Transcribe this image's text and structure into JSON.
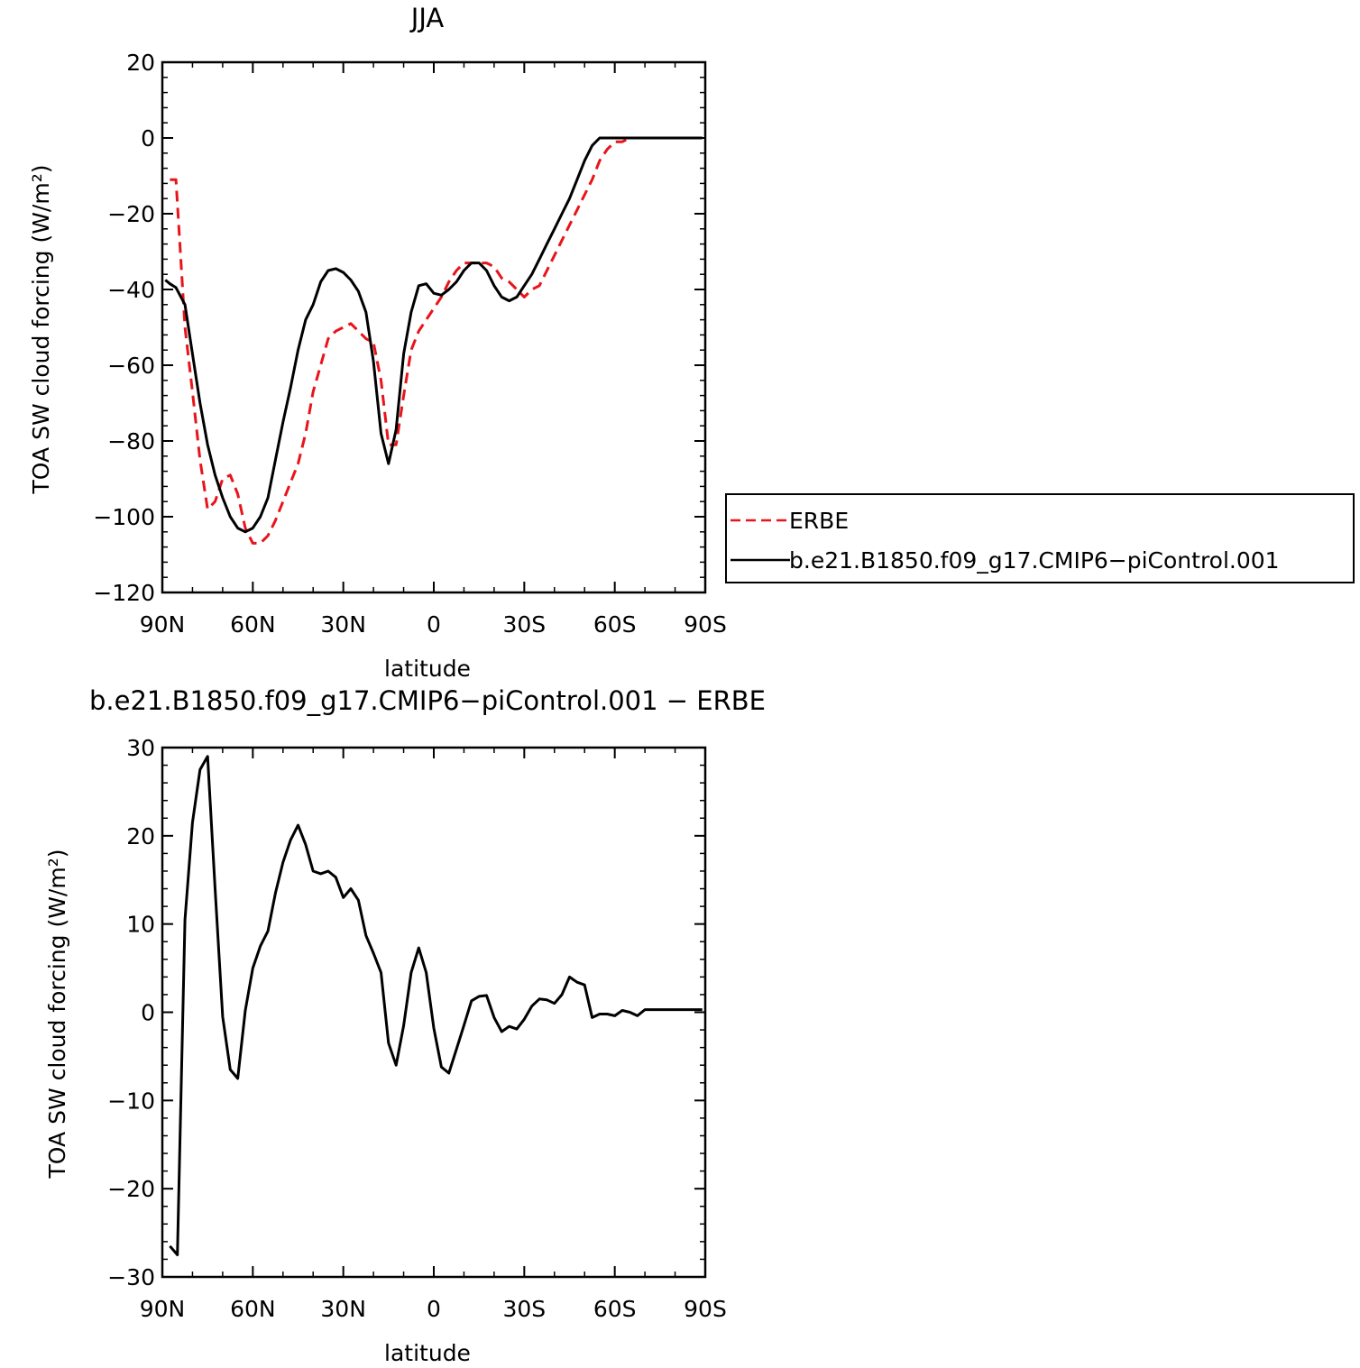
{
  "chart_data": [
    {
      "type": "line",
      "title": "JJA",
      "xlabel": "latitude",
      "ylabel": "TOA SW cloud forcing (W/m²)",
      "xlim": [
        90,
        -90
      ],
      "ylim": [
        -120,
        20
      ],
      "xticks": [
        90,
        60,
        30,
        0,
        -30,
        -60,
        -90
      ],
      "xtick_labels": [
        "90N",
        "60N",
        "30N",
        "0",
        "30S",
        "60S",
        "90S"
      ],
      "yticks": [
        20,
        0,
        -20,
        -40,
        -60,
        -80,
        -100,
        -120
      ],
      "ytick_labels": [
        "20",
        "0",
        "−20",
        "−40",
        "−60",
        "−80",
        "−100",
        "−120"
      ],
      "grid": false,
      "legend_position": "right",
      "series": [
        {
          "name": "ERBE",
          "color": "#e8141b",
          "style": "dashed",
          "x": [
            87.5,
            85.5,
            82.5,
            80,
            77.5,
            75,
            72.5,
            70,
            67.5,
            65,
            62.5,
            60,
            57.5,
            55,
            52.5,
            50,
            47.5,
            45,
            42.5,
            40,
            37.5,
            35,
            32.5,
            30,
            27.5,
            25,
            22.5,
            20,
            17.5,
            15,
            12.5,
            10,
            7.5,
            5,
            2.5,
            0,
            -2.5,
            -5,
            -7.5,
            -10,
            -12.5,
            -15,
            -17.5,
            -20,
            -22.5,
            -25,
            -27.5,
            -30,
            -32.5,
            -35,
            -37.5,
            -40,
            -42.5,
            -45,
            -47.5,
            -50,
            -52.5,
            -55,
            -57.5,
            -60,
            -62.5,
            -65,
            -67.5,
            -70,
            -72.5,
            -75,
            -77.5,
            -80,
            -82.5,
            -85,
            -87.5,
            -89
          ],
          "values": [
            -11,
            -11,
            -50,
            -67,
            -85,
            -98,
            -96,
            -90,
            -89,
            -94,
            -103,
            -107,
            -107,
            -105,
            -101,
            -96,
            -91,
            -86,
            -78,
            -67,
            -60,
            -53,
            -51,
            -50,
            -49,
            -51,
            -53,
            -54,
            -64,
            -81,
            -81,
            -68,
            -56,
            -51,
            -48,
            -45,
            -42,
            -38,
            -35,
            -33,
            -33,
            -33,
            -33,
            -34,
            -37,
            -38,
            -40,
            -42,
            -40,
            -39,
            -35,
            -31,
            -27,
            -23,
            -19,
            -15,
            -11,
            -6,
            -3,
            -1,
            -1,
            0,
            0,
            0,
            0,
            0,
            0,
            0,
            0,
            0,
            0,
            0
          ]
        },
        {
          "name": "b.e21.B1850.f09_g17.CMIP6−piControl.001",
          "color": "#000000",
          "style": "solid",
          "x": [
            89,
            87.5,
            85.5,
            82.5,
            80,
            77.5,
            75,
            72.5,
            70,
            67.5,
            65,
            62.5,
            60,
            57.5,
            55,
            52.5,
            50,
            47.5,
            45,
            42.5,
            40,
            37.5,
            35,
            32.5,
            30,
            27.5,
            25,
            22.5,
            20,
            17.5,
            15,
            12.5,
            10,
            7.5,
            5,
            2.5,
            0,
            -2.5,
            -5,
            -7.5,
            -10,
            -12.5,
            -15,
            -17.5,
            -20,
            -22.5,
            -25,
            -27.5,
            -30,
            -32.5,
            -35,
            -37.5,
            -40,
            -42.5,
            -45,
            -47.5,
            -50,
            -52.5,
            -55,
            -57.5,
            -60,
            -62.5,
            -65,
            -67.5,
            -70,
            -72.5,
            -75,
            -77.5,
            -80,
            -82.5,
            -85,
            -87.5,
            -89
          ],
          "values": [
            -37.5,
            -38.5,
            -39.5,
            -44,
            -57,
            -70,
            -81,
            -89,
            -95,
            -100,
            -103,
            -104,
            -103,
            -100,
            -95,
            -85,
            -75,
            -66,
            -56,
            -48,
            -44,
            -38,
            -35,
            -34.5,
            -35.5,
            -37.5,
            -40.5,
            -46,
            -59,
            -78,
            -86,
            -77,
            -57,
            -46,
            -39,
            -38.5,
            -41,
            -41.5,
            -40,
            -38,
            -35,
            -33,
            -33,
            -35,
            -39,
            -42,
            -43,
            -42,
            -39,
            -36,
            -32,
            -28,
            -24,
            -20,
            -16,
            -11,
            -6,
            -2,
            0,
            0,
            0,
            0,
            0,
            0,
            0,
            0,
            0,
            0,
            0,
            0,
            0,
            0,
            0
          ]
        }
      ]
    },
    {
      "type": "line",
      "title": "b.e21.B1850.f09_g17.CMIP6−piControl.001  −  ERBE",
      "xlabel": "latitude",
      "ylabel": "TOA SW cloud forcing (W/m²)",
      "xlim": [
        90,
        -90
      ],
      "ylim": [
        -30,
        30
      ],
      "xticks": [
        90,
        60,
        30,
        0,
        -30,
        -60,
        -90
      ],
      "xtick_labels": [
        "90N",
        "60N",
        "30N",
        "0",
        "30S",
        "60S",
        "90S"
      ],
      "yticks": [
        30,
        20,
        10,
        0,
        -10,
        -20,
        -30
      ],
      "ytick_labels": [
        "30",
        "20",
        "10",
        "0",
        "−10",
        "−20",
        "−30"
      ],
      "grid": false,
      "series": [
        {
          "color": "#000000",
          "style": "solid",
          "x": [
            87.5,
            85,
            82.5,
            80,
            77.5,
            75,
            72.5,
            70,
            67.5,
            65,
            62.5,
            60,
            57.5,
            55,
            52.5,
            50,
            47.5,
            45,
            42.5,
            40,
            37.5,
            35,
            32.5,
            30,
            27.5,
            25,
            22.5,
            20,
            17.5,
            15,
            12.5,
            10,
            7.5,
            5,
            2.5,
            0,
            -2.5,
            -5,
            -7.5,
            -10,
            -12.5,
            -15,
            -17.5,
            -20,
            -22.5,
            -25,
            -27.5,
            -30,
            -32.5,
            -35,
            -37.5,
            -40,
            -42.5,
            -45,
            -47.5,
            -50,
            -52.5,
            -55,
            -57.5,
            -60,
            -62.5,
            -65,
            -67.5,
            -70,
            -72.5,
            -75,
            -77.5,
            -80,
            -82.5,
            -85,
            -87.5,
            -89
          ],
          "values": [
            -26.5,
            -27.5,
            10.5,
            21.5,
            27.5,
            29,
            14,
            -0.5,
            -6.5,
            -7.5,
            0.2,
            5,
            7.5,
            9.2,
            13.5,
            17,
            19.5,
            21.2,
            19,
            16,
            15.7,
            16,
            15.3,
            13,
            14,
            12.7,
            8.7,
            6.7,
            4.5,
            -3.5,
            -6,
            -1.5,
            4.5,
            7.3,
            4.5,
            -1.8,
            -6.2,
            -6.9,
            -4.2,
            -1.5,
            1.3,
            1.8,
            1.9,
            -0.6,
            -2.2,
            -1.6,
            -1.9,
            -0.8,
            0.7,
            1.5,
            1.4,
            1,
            2,
            4,
            3.4,
            3.1,
            -0.6,
            -0.2,
            -0.2,
            -0.4,
            0.2,
            0,
            -0.4,
            0.3,
            0.3,
            0.3,
            0.3,
            0.3,
            0.3,
            0.3,
            0.3,
            0.3
          ]
        }
      ]
    }
  ]
}
